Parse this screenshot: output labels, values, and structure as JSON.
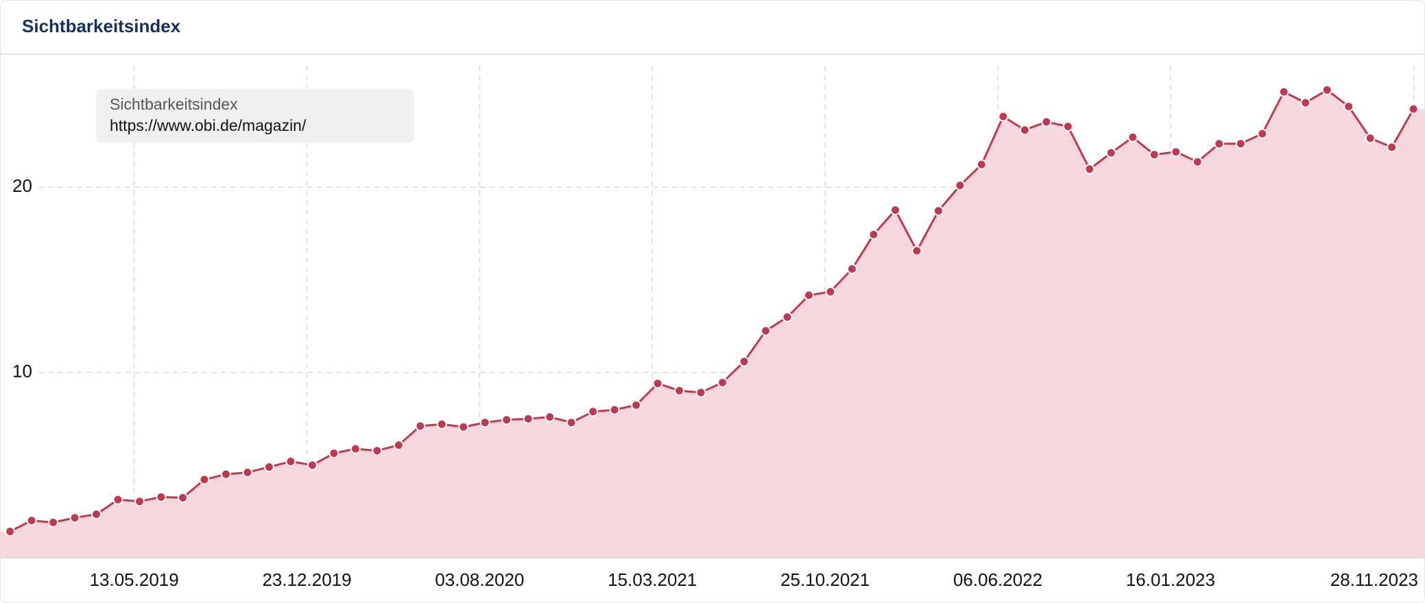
{
  "chart_data": {
    "type": "line",
    "title": "Sichtbarkeitsindex",
    "legend_title": "Sichtbarkeitsindex",
    "x": [
      "03.12.2018",
      "31.12.2018",
      "28.01.2019",
      "25.02.2019",
      "25.03.2019",
      "22.04.2019",
      "20.05.2019",
      "17.06.2019",
      "15.07.2019",
      "12.08.2019",
      "09.09.2019",
      "07.10.2019",
      "04.11.2019",
      "02.12.2019",
      "30.12.2019",
      "27.01.2020",
      "24.02.2020",
      "23.03.2020",
      "20.04.2020",
      "18.05.2020",
      "15.06.2020",
      "13.07.2020",
      "10.08.2020",
      "07.09.2020",
      "05.10.2020",
      "02.11.2020",
      "30.11.2020",
      "28.12.2020",
      "25.01.2021",
      "22.02.2021",
      "22.03.2021",
      "19.04.2021",
      "17.05.2021",
      "14.06.2021",
      "12.07.2021",
      "09.08.2021",
      "06.09.2021",
      "04.10.2021",
      "01.11.2021",
      "29.11.2021",
      "27.12.2021",
      "24.01.2022",
      "21.02.2022",
      "21.03.2022",
      "18.04.2022",
      "16.05.2022",
      "13.06.2022",
      "11.07.2022",
      "08.08.2022",
      "05.09.2022",
      "03.10.2022",
      "31.10.2022",
      "28.11.2022",
      "26.12.2022",
      "23.01.2023",
      "20.02.2023",
      "20.03.2023",
      "17.04.2023",
      "15.05.2023",
      "12.06.2023",
      "10.07.2023",
      "07.08.2023",
      "04.09.2023",
      "02.10.2023",
      "30.10.2023",
      "27.11.2023"
    ],
    "series": [
      {
        "name": "https://www.obi.de/magazin/",
        "color": "#c0394f",
        "fill": "#f5d7dd",
        "values": [
          1.42,
          2.01,
          1.91,
          2.16,
          2.35,
          3.14,
          3.04,
          3.28,
          3.24,
          4.22,
          4.51,
          4.61,
          4.9,
          5.2,
          5.0,
          5.64,
          5.88,
          5.78,
          6.08,
          7.11,
          7.21,
          7.06,
          7.3,
          7.45,
          7.5,
          7.6,
          7.3,
          7.89,
          7.99,
          8.24,
          9.41,
          9.02,
          8.92,
          9.46,
          10.59,
          12.25,
          12.99,
          14.17,
          14.36,
          15.59,
          17.45,
          18.77,
          16.57,
          18.73,
          20.1,
          21.23,
          23.82,
          23.09,
          23.53,
          23.28,
          20.98,
          21.86,
          22.7,
          21.76,
          21.91,
          21.37,
          22.35,
          22.35,
          22.89,
          25.15,
          24.56,
          25.25,
          24.36,
          22.65,
          22.16,
          24.22
        ]
      }
    ],
    "xlim": [
      "20.11.2018",
      "12.12.2023"
    ],
    "xticks": [
      "13.05.2019",
      "23.12.2019",
      "03.08.2020",
      "15.03.2021",
      "25.10.2021",
      "06.06.2022",
      "16.01.2023",
      "28.11.2023"
    ],
    "ylim": [
      0,
      27
    ],
    "yticks": [
      10,
      20
    ],
    "grid": true
  }
}
